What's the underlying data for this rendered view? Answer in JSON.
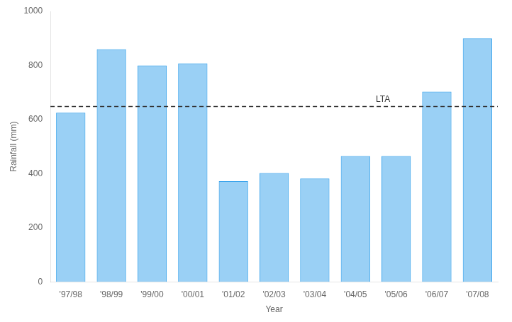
{
  "chart_data": {
    "type": "bar",
    "categories": [
      "'97/98",
      "'98/99",
      "'99/00",
      "'00/01",
      "'01/02",
      "'02/03",
      "'03/04",
      "'04/05",
      "'05/06",
      "'06/07",
      "'07/08"
    ],
    "values": [
      625,
      860,
      800,
      808,
      372,
      402,
      382,
      465,
      465,
      703,
      900
    ],
    "xlabel": "Year",
    "ylabel": "Rainfall (mm)",
    "ylim": [
      0,
      1000
    ],
    "yticks": [
      0,
      200,
      400,
      600,
      800,
      1000
    ],
    "grid": false,
    "annotations": [
      {
        "text": "LTA",
        "y": 648,
        "line_style": "dashed"
      }
    ]
  }
}
